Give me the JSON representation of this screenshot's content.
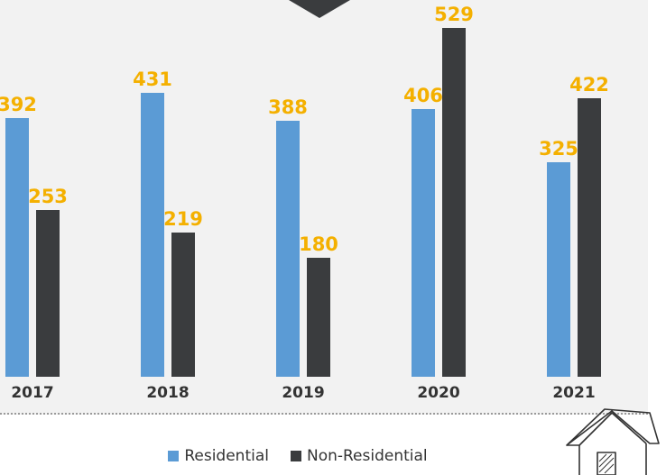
{
  "colors": {
    "residential": "#5b9bd5",
    "non_residential": "#3a3c3e",
    "value_label": "#f4b000",
    "panel": "#f2f2f2"
  },
  "chart_data": {
    "type": "bar",
    "categories": [
      "2017",
      "2018",
      "2019",
      "2020",
      "2021"
    ],
    "series": [
      {
        "name": "Residential",
        "values": [
          392,
          431,
          388,
          406,
          325
        ]
      },
      {
        "name": "Non-Residential",
        "values": [
          253,
          219,
          180,
          529,
          422
        ]
      }
    ],
    "ylim": [
      0,
      529
    ],
    "grid": false,
    "legend_position": "bottom",
    "data_labels": true
  },
  "legend": {
    "items": [
      {
        "label": "Residential",
        "color": "#5b9bd5"
      },
      {
        "label": "Non-Residential",
        "color": "#3a3c3e"
      }
    ]
  },
  "decorations": {
    "top_marker_icon": "down-triangle-icon",
    "house_icon": "house-outline-icon"
  }
}
